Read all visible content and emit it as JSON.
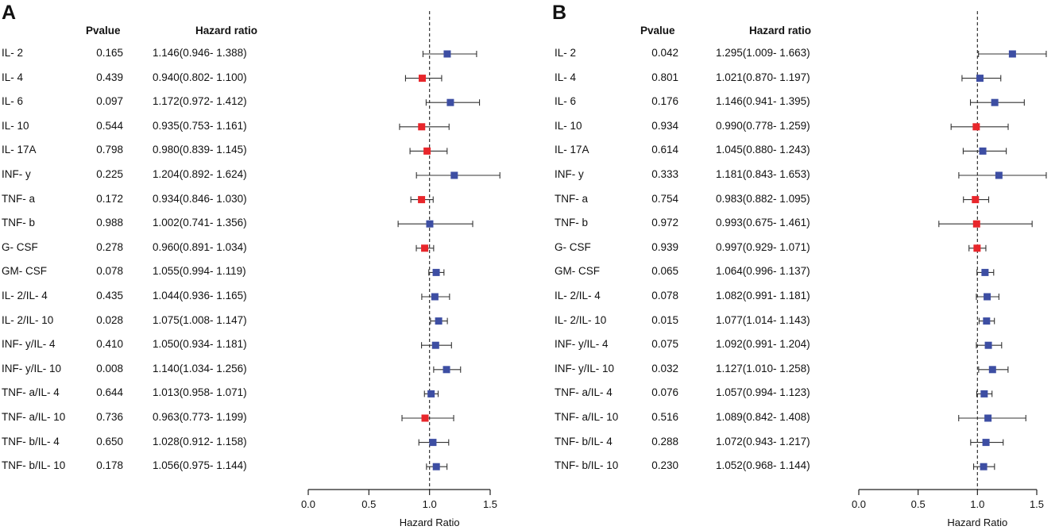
{
  "chart_data": [
    {
      "type": "forest",
      "panel_label": "A",
      "headers": {
        "pvalue": "Pvalue",
        "hazard_ratio": "Hazard ratio"
      },
      "xlabel": "Hazard Ratio",
      "xlim": [
        0.0,
        1.5
      ],
      "xticks": [
        "0.0",
        "0.5",
        "1.0",
        "1.5"
      ],
      "reference_line": 1.0,
      "colors": {
        "above_one": "#3d4ea3",
        "below_one": "#e8262b",
        "line": "#333333"
      },
      "rows": [
        {
          "label": "IL- 2",
          "pvalue": "0.165",
          "hr_text": "1.146(0.946- 1.388)",
          "hr": 1.146,
          "lo": 0.946,
          "hi": 1.388
        },
        {
          "label": "IL- 4",
          "pvalue": "0.439",
          "hr_text": "0.940(0.802- 1.100)",
          "hr": 0.94,
          "lo": 0.802,
          "hi": 1.1
        },
        {
          "label": "IL- 6",
          "pvalue": "0.097",
          "hr_text": "1.172(0.972- 1.412)",
          "hr": 1.172,
          "lo": 0.972,
          "hi": 1.412
        },
        {
          "label": "IL- 10",
          "pvalue": "0.544",
          "hr_text": "0.935(0.753- 1.161)",
          "hr": 0.935,
          "lo": 0.753,
          "hi": 1.161
        },
        {
          "label": "IL- 17A",
          "pvalue": "0.798",
          "hr_text": "0.980(0.839- 1.145)",
          "hr": 0.98,
          "lo": 0.839,
          "hi": 1.145
        },
        {
          "label": "INF- y",
          "pvalue": "0.225",
          "hr_text": "1.204(0.892- 1.624)",
          "hr": 1.204,
          "lo": 0.892,
          "hi": 1.624
        },
        {
          "label": "TNF- a",
          "pvalue": "0.172",
          "hr_text": "0.934(0.846- 1.030)",
          "hr": 0.934,
          "lo": 0.846,
          "hi": 1.03
        },
        {
          "label": "TNF- b",
          "pvalue": "0.988",
          "hr_text": "1.002(0.741- 1.356)",
          "hr": 1.002,
          "lo": 0.741,
          "hi": 1.356
        },
        {
          "label": "G- CSF",
          "pvalue": "0.278",
          "hr_text": "0.960(0.891- 1.034)",
          "hr": 0.96,
          "lo": 0.891,
          "hi": 1.034
        },
        {
          "label": "GM- CSF",
          "pvalue": "0.078",
          "hr_text": "1.055(0.994- 1.119)",
          "hr": 1.055,
          "lo": 0.994,
          "hi": 1.119
        },
        {
          "label": "IL- 2/IL- 4",
          "pvalue": "0.435",
          "hr_text": "1.044(0.936- 1.165)",
          "hr": 1.044,
          "lo": 0.936,
          "hi": 1.165
        },
        {
          "label": "IL- 2/IL- 10",
          "pvalue": "0.028",
          "hr_text": "1.075(1.008- 1.147)",
          "hr": 1.075,
          "lo": 1.008,
          "hi": 1.147
        },
        {
          "label": "INF- y/IL- 4",
          "pvalue": "0.410",
          "hr_text": "1.050(0.934- 1.181)",
          "hr": 1.05,
          "lo": 0.934,
          "hi": 1.181
        },
        {
          "label": "INF- y/IL- 10",
          "pvalue": "0.008",
          "hr_text": "1.140(1.034- 1.256)",
          "hr": 1.14,
          "lo": 1.034,
          "hi": 1.256
        },
        {
          "label": "TNF- a/IL- 4",
          "pvalue": "0.644",
          "hr_text": "1.013(0.958- 1.071)",
          "hr": 1.013,
          "lo": 0.958,
          "hi": 1.071
        },
        {
          "label": "TNF- a/IL- 10",
          "pvalue": "0.736",
          "hr_text": "0.963(0.773- 1.199)",
          "hr": 0.963,
          "lo": 0.773,
          "hi": 1.199
        },
        {
          "label": "TNF- b/IL- 4",
          "pvalue": "0.650",
          "hr_text": "1.028(0.912- 1.158)",
          "hr": 1.028,
          "lo": 0.912,
          "hi": 1.158
        },
        {
          "label": "TNF- b/IL- 10",
          "pvalue": "0.178",
          "hr_text": "1.056(0.975- 1.144)",
          "hr": 1.056,
          "lo": 0.975,
          "hi": 1.144
        }
      ]
    },
    {
      "type": "forest",
      "panel_label": "B",
      "headers": {
        "pvalue": "Pvalue",
        "hazard_ratio": "Hazard ratio"
      },
      "xlabel": "Hazard Ratio",
      "xlim": [
        0.0,
        1.5
      ],
      "xticks": [
        "0.0",
        "0.5",
        "1.0",
        "1.5"
      ],
      "reference_line": 1.0,
      "colors": {
        "above_one": "#3d4ea3",
        "below_one": "#e8262b",
        "line": "#333333"
      },
      "rows": [
        {
          "label": "IL- 2",
          "pvalue": "0.042",
          "hr_text": "1.295(1.009- 1.663)",
          "hr": 1.295,
          "lo": 1.009,
          "hi": 1.663
        },
        {
          "label": "IL- 4",
          "pvalue": "0.801",
          "hr_text": "1.021(0.870- 1.197)",
          "hr": 1.021,
          "lo": 0.87,
          "hi": 1.197
        },
        {
          "label": "IL- 6",
          "pvalue": "0.176",
          "hr_text": "1.146(0.941- 1.395)",
          "hr": 1.146,
          "lo": 0.941,
          "hi": 1.395
        },
        {
          "label": "IL- 10",
          "pvalue": "0.934",
          "hr_text": "0.990(0.778- 1.259)",
          "hr": 0.99,
          "lo": 0.778,
          "hi": 1.259
        },
        {
          "label": "IL- 17A",
          "pvalue": "0.614",
          "hr_text": "1.045(0.880- 1.243)",
          "hr": 1.045,
          "lo": 0.88,
          "hi": 1.243
        },
        {
          "label": "INF- y",
          "pvalue": "0.333",
          "hr_text": "1.181(0.843- 1.653)",
          "hr": 1.181,
          "lo": 0.843,
          "hi": 1.653
        },
        {
          "label": "TNF- a",
          "pvalue": "0.754",
          "hr_text": "0.983(0.882- 1.095)",
          "hr": 0.983,
          "lo": 0.882,
          "hi": 1.095
        },
        {
          "label": "TNF- b",
          "pvalue": "0.972",
          "hr_text": "0.993(0.675- 1.461)",
          "hr": 0.993,
          "lo": 0.675,
          "hi": 1.461
        },
        {
          "label": "G- CSF",
          "pvalue": "0.939",
          "hr_text": "0.997(0.929- 1.071)",
          "hr": 0.997,
          "lo": 0.929,
          "hi": 1.071
        },
        {
          "label": "GM- CSF",
          "pvalue": "0.065",
          "hr_text": "1.064(0.996- 1.137)",
          "hr": 1.064,
          "lo": 0.996,
          "hi": 1.137
        },
        {
          "label": "IL- 2/IL- 4",
          "pvalue": "0.078",
          "hr_text": "1.082(0.991- 1.181)",
          "hr": 1.082,
          "lo": 0.991,
          "hi": 1.181
        },
        {
          "label": "IL- 2/IL- 10",
          "pvalue": "0.015",
          "hr_text": "1.077(1.014- 1.143)",
          "hr": 1.077,
          "lo": 1.014,
          "hi": 1.143
        },
        {
          "label": "INF- y/IL- 4",
          "pvalue": "0.075",
          "hr_text": "1.092(0.991- 1.204)",
          "hr": 1.092,
          "lo": 0.991,
          "hi": 1.204
        },
        {
          "label": "INF- y/IL- 10",
          "pvalue": "0.032",
          "hr_text": "1.127(1.010- 1.258)",
          "hr": 1.127,
          "lo": 1.01,
          "hi": 1.258
        },
        {
          "label": "TNF- a/IL- 4",
          "pvalue": "0.076",
          "hr_text": "1.057(0.994- 1.123)",
          "hr": 1.057,
          "lo": 0.994,
          "hi": 1.123
        },
        {
          "label": "TNF- a/IL- 10",
          "pvalue": "0.516",
          "hr_text": "1.089(0.842- 1.408)",
          "hr": 1.089,
          "lo": 0.842,
          "hi": 1.408
        },
        {
          "label": "TNF- b/IL- 4",
          "pvalue": "0.288",
          "hr_text": "1.072(0.943- 1.217)",
          "hr": 1.072,
          "lo": 0.943,
          "hi": 1.217
        },
        {
          "label": "TNF- b/IL- 10",
          "pvalue": "0.230",
          "hr_text": "1.052(0.968- 1.144)",
          "hr": 1.052,
          "lo": 0.968,
          "hi": 1.144
        }
      ]
    }
  ]
}
